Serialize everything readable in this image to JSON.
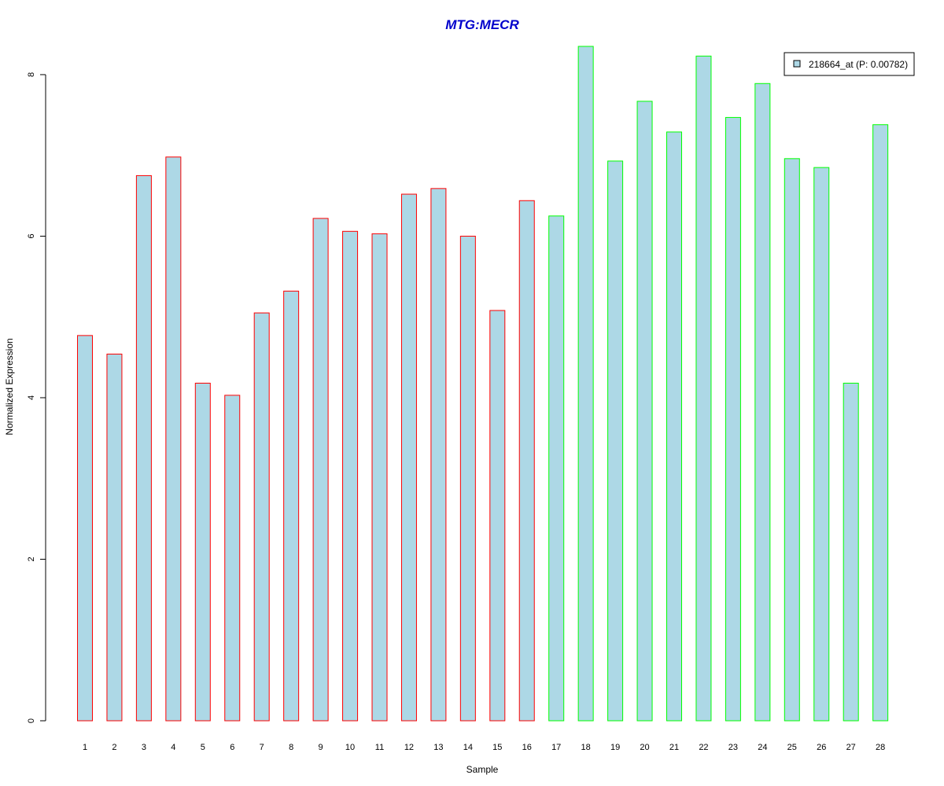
{
  "chart_data": {
    "type": "bar",
    "title": "MTG:MECR",
    "xlabel": "Sample",
    "ylabel": "Normalized Expression",
    "categories": [
      "1",
      "2",
      "3",
      "4",
      "5",
      "6",
      "7",
      "8",
      "9",
      "10",
      "11",
      "12",
      "13",
      "14",
      "15",
      "16",
      "17",
      "18",
      "19",
      "20",
      "21",
      "22",
      "23",
      "24",
      "25",
      "26",
      "27",
      "28"
    ],
    "series": [
      {
        "name": "218664_at (P: 0.00782)",
        "values": [
          4.77,
          4.54,
          6.75,
          6.98,
          4.18,
          4.03,
          5.05,
          5.32,
          6.22,
          6.06,
          6.03,
          6.52,
          6.59,
          6.0,
          5.08,
          6.44,
          6.25,
          8.35,
          6.93,
          7.67,
          7.29,
          8.23,
          7.47,
          7.89,
          6.96,
          6.85,
          4.18,
          7.38
        ]
      }
    ],
    "yticks": [
      "0",
      "2",
      "4",
      "6",
      "8"
    ],
    "ylim": [
      0,
      8.35
    ],
    "grid": false,
    "legend_position": "top-right",
    "colors": {
      "title": "#0000CC",
      "bar_fill": "#ADD8E6",
      "group_1_border": "#FF0000",
      "group_2_border": "#00FF00",
      "axis": "#000000"
    },
    "group_1_samples": [
      1,
      16
    ],
    "group_2_samples": [
      17,
      28
    ]
  }
}
